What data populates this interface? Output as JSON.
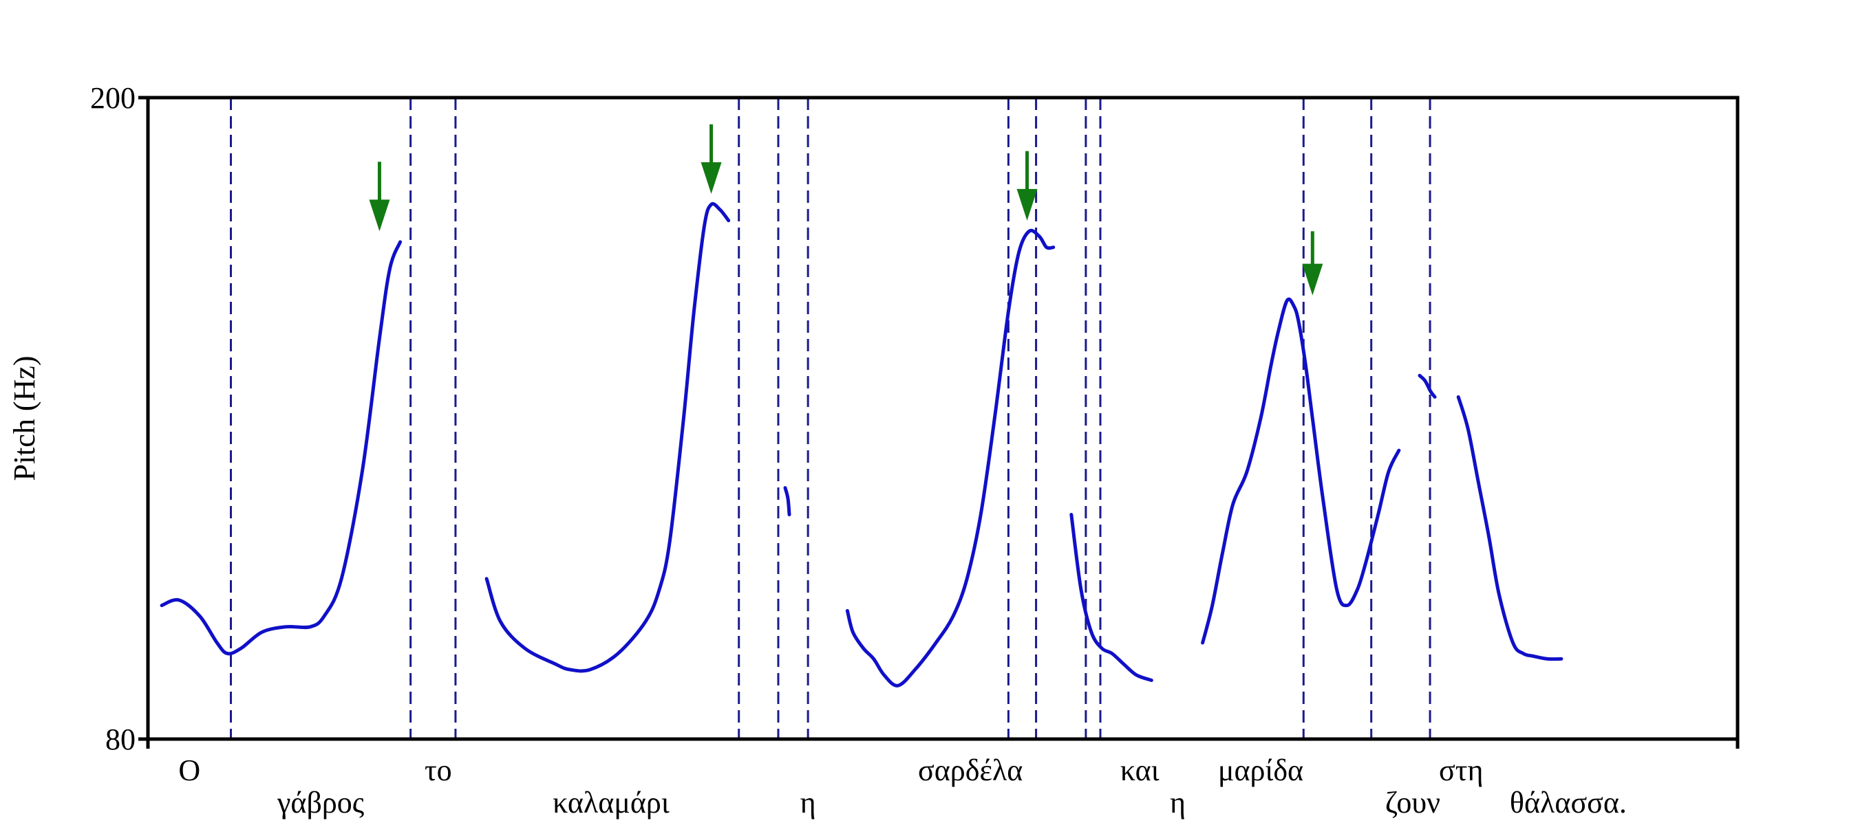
{
  "chart_data": {
    "type": "line",
    "title": "",
    "ylabel": "Pitch (Hz)",
    "xlabel": "",
    "ylim": [
      80,
      200
    ],
    "yticks": [
      80,
      200
    ],
    "grid": false,
    "colors": {
      "contour": "#1010c8",
      "boundary": "#1a1a8c",
      "arrow": "#127a12",
      "frame": "#000000"
    },
    "x_range": [
      0,
      2300
    ],
    "words": [
      {
        "text": "Ο",
        "x": 60,
        "row": 1
      },
      {
        "text": "γάβρος",
        "x": 250,
        "row": 2
      },
      {
        "text": "το",
        "x": 420,
        "row": 1
      },
      {
        "text": "καλαμάρι",
        "x": 670,
        "row": 2
      },
      {
        "text": "η",
        "x": 955,
        "row": 2
      },
      {
        "text": "σαρδέλα",
        "x": 1190,
        "row": 1
      },
      {
        "text": "και",
        "x": 1435,
        "row": 1
      },
      {
        "text": "η",
        "x": 1490,
        "row": 2
      },
      {
        "text": "μαρίδα",
        "x": 1610,
        "row": 1
      },
      {
        "text": "ζουν",
        "x": 1830,
        "row": 2
      },
      {
        "text": "στη",
        "x": 1900,
        "row": 1
      },
      {
        "text": "θάλασσα.",
        "x": 2055,
        "row": 2
      }
    ],
    "boundaries": [
      120,
      380,
      445,
      855,
      912,
      955,
      1245,
      1285,
      1357,
      1378,
      1672,
      1770,
      1855
    ],
    "accent_arrows": [
      {
        "x": 335,
        "y_top": 188,
        "y_tip": 175
      },
      {
        "x": 815,
        "y_top": 195,
        "y_tip": 182
      },
      {
        "x": 1272,
        "y_top": 190,
        "y_tip": 177
      },
      {
        "x": 1685,
        "y_top": 175,
        "y_tip": 163
      }
    ],
    "series": [
      {
        "x": [
          20,
          45,
          75,
          100,
          115,
          135,
          165,
          200,
          235,
          255,
          280,
          310,
          335,
          350,
          365
        ],
        "y": [
          105,
          106,
          103,
          98,
          96,
          97,
          100,
          101,
          101,
          103,
          110,
          130,
          155,
          168,
          173
        ]
      },
      {
        "x": [
          490,
          510,
          545,
          590,
          610,
          640,
          680,
          720,
          740,
          755,
          775,
          790,
          805,
          815,
          828,
          840
        ],
        "y": [
          110,
          102,
          97,
          94,
          93,
          93,
          96,
          102,
          108,
          117,
          140,
          160,
          176,
          180,
          179,
          177
        ]
      },
      {
        "x": [
          922,
          926,
          928
        ],
        "y": [
          127,
          125,
          122
        ]
      },
      {
        "x": [
          1012,
          1020,
          1035,
          1050,
          1065,
          1085,
          1110,
          1140,
          1165,
          1185,
          1205,
          1225,
          1245,
          1260,
          1275,
          1290,
          1300,
          1310
        ],
        "y": [
          104,
          100,
          97,
          95,
          92,
          90,
          93,
          98,
          103,
          110,
          122,
          140,
          160,
          171,
          175,
          174,
          172,
          172
        ]
      },
      {
        "x": [
          1336,
          1350,
          1365,
          1380,
          1395,
          1412,
          1430,
          1452
        ],
        "y": [
          122,
          108,
          100,
          97,
          96,
          94,
          92,
          91
        ]
      },
      {
        "x": [
          1526,
          1540,
          1555,
          1570,
          1590,
          1610,
          1625,
          1635,
          1648,
          1658,
          1665,
          1675,
          1685,
          1700,
          1720,
          1735,
          1750,
          1762,
          1780,
          1795,
          1810
        ],
        "y": [
          98,
          105,
          115,
          124,
          130,
          140,
          150,
          156,
          162,
          161,
          158,
          150,
          140,
          125,
          108,
          105,
          108,
          113,
          122,
          130,
          134
        ]
      },
      {
        "x": [
          1840,
          1848,
          1856,
          1862
        ],
        "y": [
          148,
          147,
          145,
          144
        ]
      },
      {
        "x": [
          1896,
          1910,
          1925,
          1940,
          1955,
          1975,
          1990,
          2005,
          2025,
          2045
        ],
        "y": [
          144,
          138,
          128,
          118,
          107,
          98,
          96,
          95.5,
          95,
          95
        ]
      }
    ]
  }
}
